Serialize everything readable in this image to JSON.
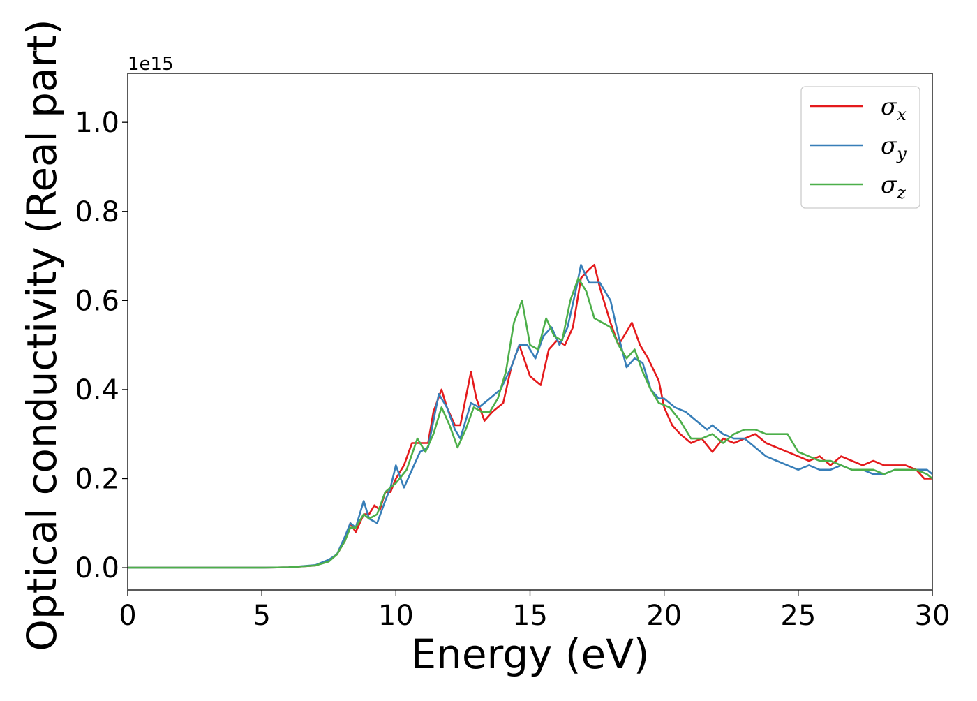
{
  "chart_data": {
    "type": "line",
    "xlabel": "Energy (eV)",
    "ylabel": "Optical conductivity (Real part)",
    "y_offset_label": "1e15",
    "xlim": [
      0,
      30
    ],
    "ylim": [
      -0.05,
      1.11
    ],
    "xticks": [
      0,
      5,
      10,
      15,
      20,
      25,
      30
    ],
    "xtick_labels": [
      "0",
      "5",
      "10",
      "15",
      "20",
      "25",
      "30"
    ],
    "yticks": [
      0.0,
      0.2,
      0.4,
      0.6,
      0.8,
      1.0
    ],
    "ytick_labels": [
      "0.0",
      "0.2",
      "0.4",
      "0.6",
      "0.8",
      "1.0"
    ],
    "grid": false,
    "legend_position": "top-right",
    "series": [
      {
        "name": "σx",
        "symbol": "σ",
        "subscript": "x",
        "color": "#e41a1c",
        "points": [
          [
            0,
            0
          ],
          [
            5,
            0.0
          ],
          [
            6,
            0.001
          ],
          [
            7,
            0.005
          ],
          [
            7.5,
            0.015
          ],
          [
            7.8,
            0.03
          ],
          [
            8.1,
            0.06
          ],
          [
            8.3,
            0.1
          ],
          [
            8.5,
            0.08
          ],
          [
            8.8,
            0.12
          ],
          [
            9,
            0.12
          ],
          [
            9.2,
            0.14
          ],
          [
            9.4,
            0.13
          ],
          [
            9.6,
            0.17
          ],
          [
            9.8,
            0.17
          ],
          [
            10,
            0.2
          ],
          [
            10.3,
            0.23
          ],
          [
            10.6,
            0.28
          ],
          [
            10.9,
            0.28
          ],
          [
            11.2,
            0.28
          ],
          [
            11.4,
            0.35
          ],
          [
            11.7,
            0.4
          ],
          [
            11.9,
            0.36
          ],
          [
            12.2,
            0.32
          ],
          [
            12.4,
            0.32
          ],
          [
            12.8,
            0.44
          ],
          [
            13,
            0.38
          ],
          [
            13.3,
            0.33
          ],
          [
            13.6,
            0.35
          ],
          [
            14,
            0.37
          ],
          [
            14.3,
            0.45
          ],
          [
            14.6,
            0.5
          ],
          [
            15,
            0.43
          ],
          [
            15.2,
            0.42
          ],
          [
            15.4,
            0.41
          ],
          [
            15.7,
            0.49
          ],
          [
            16,
            0.51
          ],
          [
            16.3,
            0.5
          ],
          [
            16.6,
            0.54
          ],
          [
            16.9,
            0.65
          ],
          [
            17.2,
            0.67
          ],
          [
            17.4,
            0.68
          ],
          [
            17.6,
            0.63
          ],
          [
            18,
            0.55
          ],
          [
            18.3,
            0.5
          ],
          [
            18.6,
            0.53
          ],
          [
            18.8,
            0.55
          ],
          [
            19.1,
            0.5
          ],
          [
            19.4,
            0.47
          ],
          [
            19.8,
            0.42
          ],
          [
            20,
            0.36
          ],
          [
            20.3,
            0.32
          ],
          [
            20.6,
            0.3
          ],
          [
            21,
            0.28
          ],
          [
            21.4,
            0.29
          ],
          [
            21.8,
            0.26
          ],
          [
            22.2,
            0.29
          ],
          [
            22.6,
            0.28
          ],
          [
            23,
            0.29
          ],
          [
            23.4,
            0.3
          ],
          [
            23.8,
            0.28
          ],
          [
            24.2,
            0.27
          ],
          [
            24.6,
            0.26
          ],
          [
            25,
            0.25
          ],
          [
            25.4,
            0.24
          ],
          [
            25.8,
            0.25
          ],
          [
            26.2,
            0.23
          ],
          [
            26.6,
            0.25
          ],
          [
            27,
            0.24
          ],
          [
            27.4,
            0.23
          ],
          [
            27.8,
            0.24
          ],
          [
            28.2,
            0.23
          ],
          [
            28.6,
            0.23
          ],
          [
            29,
            0.23
          ],
          [
            29.4,
            0.22
          ],
          [
            29.7,
            0.2
          ],
          [
            30,
            0.2
          ]
        ]
      },
      {
        "name": "σy",
        "symbol": "σ",
        "subscript": "y",
        "color": "#377eb8",
        "points": [
          [
            0,
            0
          ],
          [
            5,
            0.0
          ],
          [
            6,
            0.001
          ],
          [
            7,
            0.006
          ],
          [
            7.5,
            0.018
          ],
          [
            7.8,
            0.03
          ],
          [
            8.1,
            0.07
          ],
          [
            8.3,
            0.1
          ],
          [
            8.5,
            0.09
          ],
          [
            8.8,
            0.15
          ],
          [
            9,
            0.11
          ],
          [
            9.3,
            0.1
          ],
          [
            9.6,
            0.15
          ],
          [
            9.8,
            0.18
          ],
          [
            10,
            0.23
          ],
          [
            10.3,
            0.18
          ],
          [
            10.6,
            0.22
          ],
          [
            10.9,
            0.26
          ],
          [
            11.2,
            0.27
          ],
          [
            11.6,
            0.39
          ],
          [
            11.9,
            0.36
          ],
          [
            12.2,
            0.31
          ],
          [
            12.4,
            0.29
          ],
          [
            12.8,
            0.37
          ],
          [
            13.1,
            0.36
          ],
          [
            13.5,
            0.38
          ],
          [
            13.9,
            0.4
          ],
          [
            14.3,
            0.45
          ],
          [
            14.6,
            0.5
          ],
          [
            14.9,
            0.5
          ],
          [
            15.2,
            0.47
          ],
          [
            15.5,
            0.52
          ],
          [
            15.8,
            0.54
          ],
          [
            16.1,
            0.5
          ],
          [
            16.4,
            0.54
          ],
          [
            16.7,
            0.62
          ],
          [
            16.9,
            0.68
          ],
          [
            17.2,
            0.64
          ],
          [
            17.6,
            0.64
          ],
          [
            18,
            0.6
          ],
          [
            18.3,
            0.52
          ],
          [
            18.6,
            0.45
          ],
          [
            18.9,
            0.47
          ],
          [
            19.2,
            0.46
          ],
          [
            19.5,
            0.4
          ],
          [
            19.8,
            0.38
          ],
          [
            20,
            0.38
          ],
          [
            20.4,
            0.36
          ],
          [
            20.8,
            0.35
          ],
          [
            21.2,
            0.33
          ],
          [
            21.6,
            0.31
          ],
          [
            21.8,
            0.32
          ],
          [
            22.2,
            0.3
          ],
          [
            22.6,
            0.29
          ],
          [
            23,
            0.29
          ],
          [
            23.4,
            0.27
          ],
          [
            23.8,
            0.25
          ],
          [
            24.2,
            0.24
          ],
          [
            24.6,
            0.23
          ],
          [
            25,
            0.22
          ],
          [
            25.4,
            0.23
          ],
          [
            25.8,
            0.22
          ],
          [
            26.2,
            0.22
          ],
          [
            26.6,
            0.23
          ],
          [
            27,
            0.22
          ],
          [
            27.4,
            0.22
          ],
          [
            27.8,
            0.21
          ],
          [
            28.2,
            0.21
          ],
          [
            28.6,
            0.22
          ],
          [
            29,
            0.22
          ],
          [
            29.4,
            0.22
          ],
          [
            29.8,
            0.22
          ],
          [
            30,
            0.21
          ]
        ]
      },
      {
        "name": "σz",
        "symbol": "σ",
        "subscript": "z",
        "color": "#4daf4a",
        "points": [
          [
            0,
            0
          ],
          [
            5,
            0.0
          ],
          [
            6,
            0.001
          ],
          [
            7,
            0.005
          ],
          [
            7.5,
            0.014
          ],
          [
            7.8,
            0.03
          ],
          [
            8.1,
            0.06
          ],
          [
            8.3,
            0.09
          ],
          [
            8.5,
            0.09
          ],
          [
            8.8,
            0.12
          ],
          [
            9,
            0.11
          ],
          [
            9.3,
            0.12
          ],
          [
            9.6,
            0.17
          ],
          [
            9.8,
            0.18
          ],
          [
            10,
            0.19
          ],
          [
            10.4,
            0.22
          ],
          [
            10.8,
            0.29
          ],
          [
            11.1,
            0.26
          ],
          [
            11.4,
            0.3
          ],
          [
            11.7,
            0.36
          ],
          [
            12,
            0.32
          ],
          [
            12.3,
            0.27
          ],
          [
            12.6,
            0.31
          ],
          [
            12.9,
            0.36
          ],
          [
            13.2,
            0.35
          ],
          [
            13.5,
            0.35
          ],
          [
            13.8,
            0.38
          ],
          [
            14.1,
            0.44
          ],
          [
            14.4,
            0.55
          ],
          [
            14.7,
            0.6
          ],
          [
            15,
            0.5
          ],
          [
            15.3,
            0.49
          ],
          [
            15.6,
            0.56
          ],
          [
            15.9,
            0.52
          ],
          [
            16.2,
            0.51
          ],
          [
            16.5,
            0.6
          ],
          [
            16.8,
            0.65
          ],
          [
            17.1,
            0.62
          ],
          [
            17.4,
            0.56
          ],
          [
            17.7,
            0.55
          ],
          [
            18,
            0.54
          ],
          [
            18.3,
            0.5
          ],
          [
            18.6,
            0.47
          ],
          [
            18.9,
            0.49
          ],
          [
            19.2,
            0.44
          ],
          [
            19.5,
            0.4
          ],
          [
            19.8,
            0.37
          ],
          [
            20.2,
            0.36
          ],
          [
            20.6,
            0.33
          ],
          [
            21,
            0.29
          ],
          [
            21.4,
            0.29
          ],
          [
            21.8,
            0.3
          ],
          [
            22.2,
            0.28
          ],
          [
            22.6,
            0.3
          ],
          [
            23,
            0.31
          ],
          [
            23.4,
            0.31
          ],
          [
            23.8,
            0.3
          ],
          [
            24.2,
            0.3
          ],
          [
            24.6,
            0.3
          ],
          [
            25,
            0.26
          ],
          [
            25.4,
            0.25
          ],
          [
            25.8,
            0.24
          ],
          [
            26.2,
            0.24
          ],
          [
            26.6,
            0.23
          ],
          [
            27,
            0.22
          ],
          [
            27.4,
            0.22
          ],
          [
            27.8,
            0.22
          ],
          [
            28.2,
            0.21
          ],
          [
            28.6,
            0.22
          ],
          [
            29,
            0.22
          ],
          [
            29.4,
            0.22
          ],
          [
            29.8,
            0.21
          ],
          [
            30,
            0.2
          ]
        ]
      }
    ]
  }
}
